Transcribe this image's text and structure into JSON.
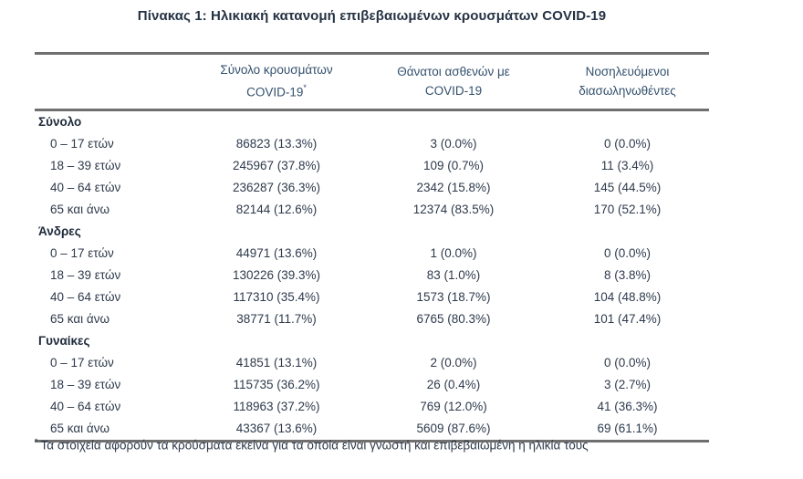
{
  "title": "Πίνακας 1: Ηλικιακή κατανομή επιβεβαιωμένων κρουσμάτων COVID-19",
  "table": {
    "columns": [
      {
        "line1": "Σύνολο κρουσμάτων",
        "line2": "COVID-19",
        "sup": "*"
      },
      {
        "line1": "Θάνατοι ασθενών με",
        "line2": "COVID-19"
      },
      {
        "line1": "Νοσηλευόμενοι",
        "line2": "διασωληνωθέντες"
      }
    ],
    "sections": [
      {
        "name": "Σύνολο",
        "rows": [
          {
            "age": "0 – 17 ετών",
            "cases": "86823 (13.3%)",
            "deaths": "3 (0.0%)",
            "intubated": "0 (0.0%)"
          },
          {
            "age": "18 – 39 ετών",
            "cases": "245967 (37.8%)",
            "deaths": "109 (0.7%)",
            "intubated": "11 (3.4%)"
          },
          {
            "age": "40 – 64 ετών",
            "cases": "236287 (36.3%)",
            "deaths": "2342 (15.8%)",
            "intubated": "145 (44.5%)"
          },
          {
            "age": "65 και άνω",
            "cases": "82144 (12.6%)",
            "deaths": "12374 (83.5%)",
            "intubated": "170 (52.1%)"
          }
        ]
      },
      {
        "name": "Άνδρες",
        "rows": [
          {
            "age": "0 – 17 ετών",
            "cases": "44971 (13.6%)",
            "deaths": "1 (0.0%)",
            "intubated": "0 (0.0%)"
          },
          {
            "age": "18 – 39 ετών",
            "cases": "130226 (39.3%)",
            "deaths": "83 (1.0%)",
            "intubated": "8 (3.8%)"
          },
          {
            "age": "40 – 64 ετών",
            "cases": "117310 (35.4%)",
            "deaths": "1573 (18.7%)",
            "intubated": "104 (48.8%)"
          },
          {
            "age": "65 και άνω",
            "cases": "38771 (11.7%)",
            "deaths": "6765 (80.3%)",
            "intubated": "101 (47.4%)"
          }
        ]
      },
      {
        "name": "Γυναίκες",
        "rows": [
          {
            "age": "0 – 17 ετών",
            "cases": "41851 (13.1%)",
            "deaths": "2 (0.0%)",
            "intubated": "0 (0.0%)"
          },
          {
            "age": "18 – 39 ετών",
            "cases": "115735 (36.2%)",
            "deaths": "26 (0.4%)",
            "intubated": "3 (2.7%)"
          },
          {
            "age": "40 – 64 ετών",
            "cases": "118963 (37.2%)",
            "deaths": "769 (12.0%)",
            "intubated": "41 (36.3%)"
          },
          {
            "age": "65 και άνω",
            "cases": "43367 (13.6%)",
            "deaths": "5609 (87.6%)",
            "intubated": "69 (61.1%)"
          }
        ]
      }
    ]
  },
  "footnote": {
    "marker": "*",
    "text": "Τα στοιχεία αφορούν τα κρούσματα εκείνα για τα οποία είναι γνωστή και επιβεβαιωμένη η ηλικία τους"
  },
  "colors": {
    "body_text": "#2d3a4c",
    "header_text": "#33506e",
    "section_text": "#1e2a3a",
    "rule": "#6f6f6f",
    "background": "#ffffff"
  }
}
